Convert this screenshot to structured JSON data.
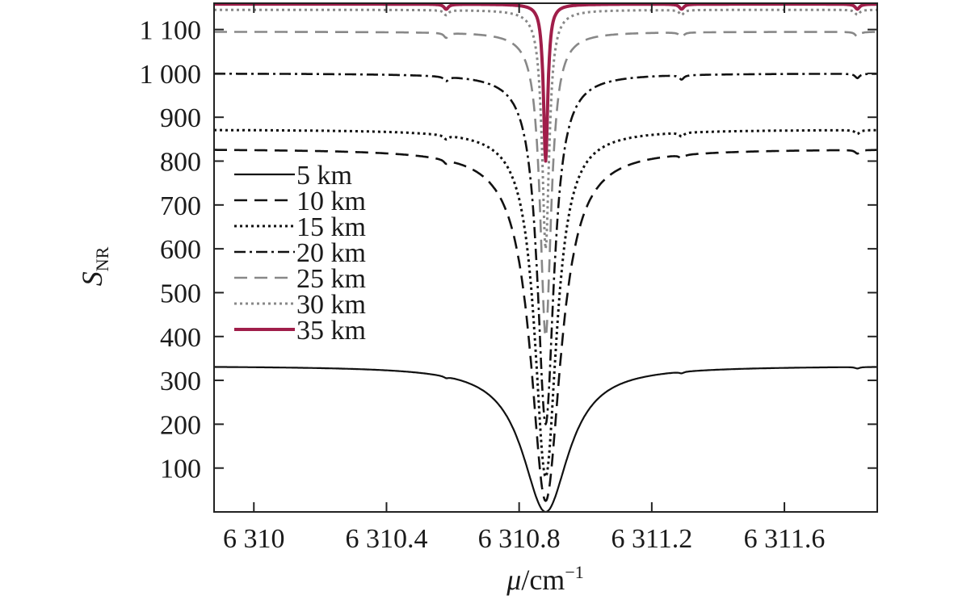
{
  "chart_data": {
    "type": "line",
    "title": "",
    "xlabel": {
      "symbol": "μ",
      "unit_base": "/cm",
      "unit_sup": "−1"
    },
    "ylabel": {
      "symbol": "S",
      "sub": "NR"
    },
    "xlim": [
      6309.88,
      6311.88
    ],
    "ylim": [
      0,
      1160
    ],
    "xticks": [
      6310.0,
      6310.4,
      6310.8,
      6311.2,
      6311.6
    ],
    "xtick_labels": [
      "6 310",
      "6 310.4",
      "6 310.8",
      "6 311.2",
      "6 311.6"
    ],
    "yticks": [
      100,
      200,
      300,
      400,
      500,
      600,
      700,
      800,
      900,
      1000,
      1100
    ],
    "ytick_labels": [
      "100",
      "200",
      "300",
      "400",
      "500",
      "600",
      "700",
      "800",
      "900",
      "1 000",
      "1 100"
    ],
    "grid": false,
    "legend_position": "left-center",
    "absorption_center": 6310.88,
    "series": [
      {
        "name": "5 km",
        "plateau": 333,
        "min": 0,
        "dip_halfwidth": 0.085,
        "color": "#111111",
        "dash": "",
        "width": 2.2
      },
      {
        "name": "10 km",
        "plateau": 828,
        "min": 25,
        "dip_halfwidth": 0.055,
        "color": "#111111",
        "dash": "16,9",
        "width": 2.6
      },
      {
        "name": "15 km",
        "plateau": 872,
        "min": 80,
        "dip_halfwidth": 0.04,
        "color": "#111111",
        "dash": "3,4",
        "width": 3.0
      },
      {
        "name": "20 km",
        "plateau": 1000,
        "min": 200,
        "dip_halfwidth": 0.03,
        "color": "#111111",
        "dash": "14,5,3,5",
        "width": 2.6
      },
      {
        "name": "25 km",
        "plateau": 1095,
        "min": 400,
        "dip_halfwidth": 0.02,
        "color": "#888888",
        "dash": "16,9",
        "width": 2.6
      },
      {
        "name": "30 km",
        "plateau": 1145,
        "min": 600,
        "dip_halfwidth": 0.013,
        "color": "#888888",
        "dash": "3,4",
        "width": 3.0
      },
      {
        "name": "35 km",
        "plateau": 1158,
        "min": 800,
        "dip_halfwidth": 0.008,
        "color": "#a01e4a",
        "dash": "",
        "width": 4.0
      }
    ]
  }
}
